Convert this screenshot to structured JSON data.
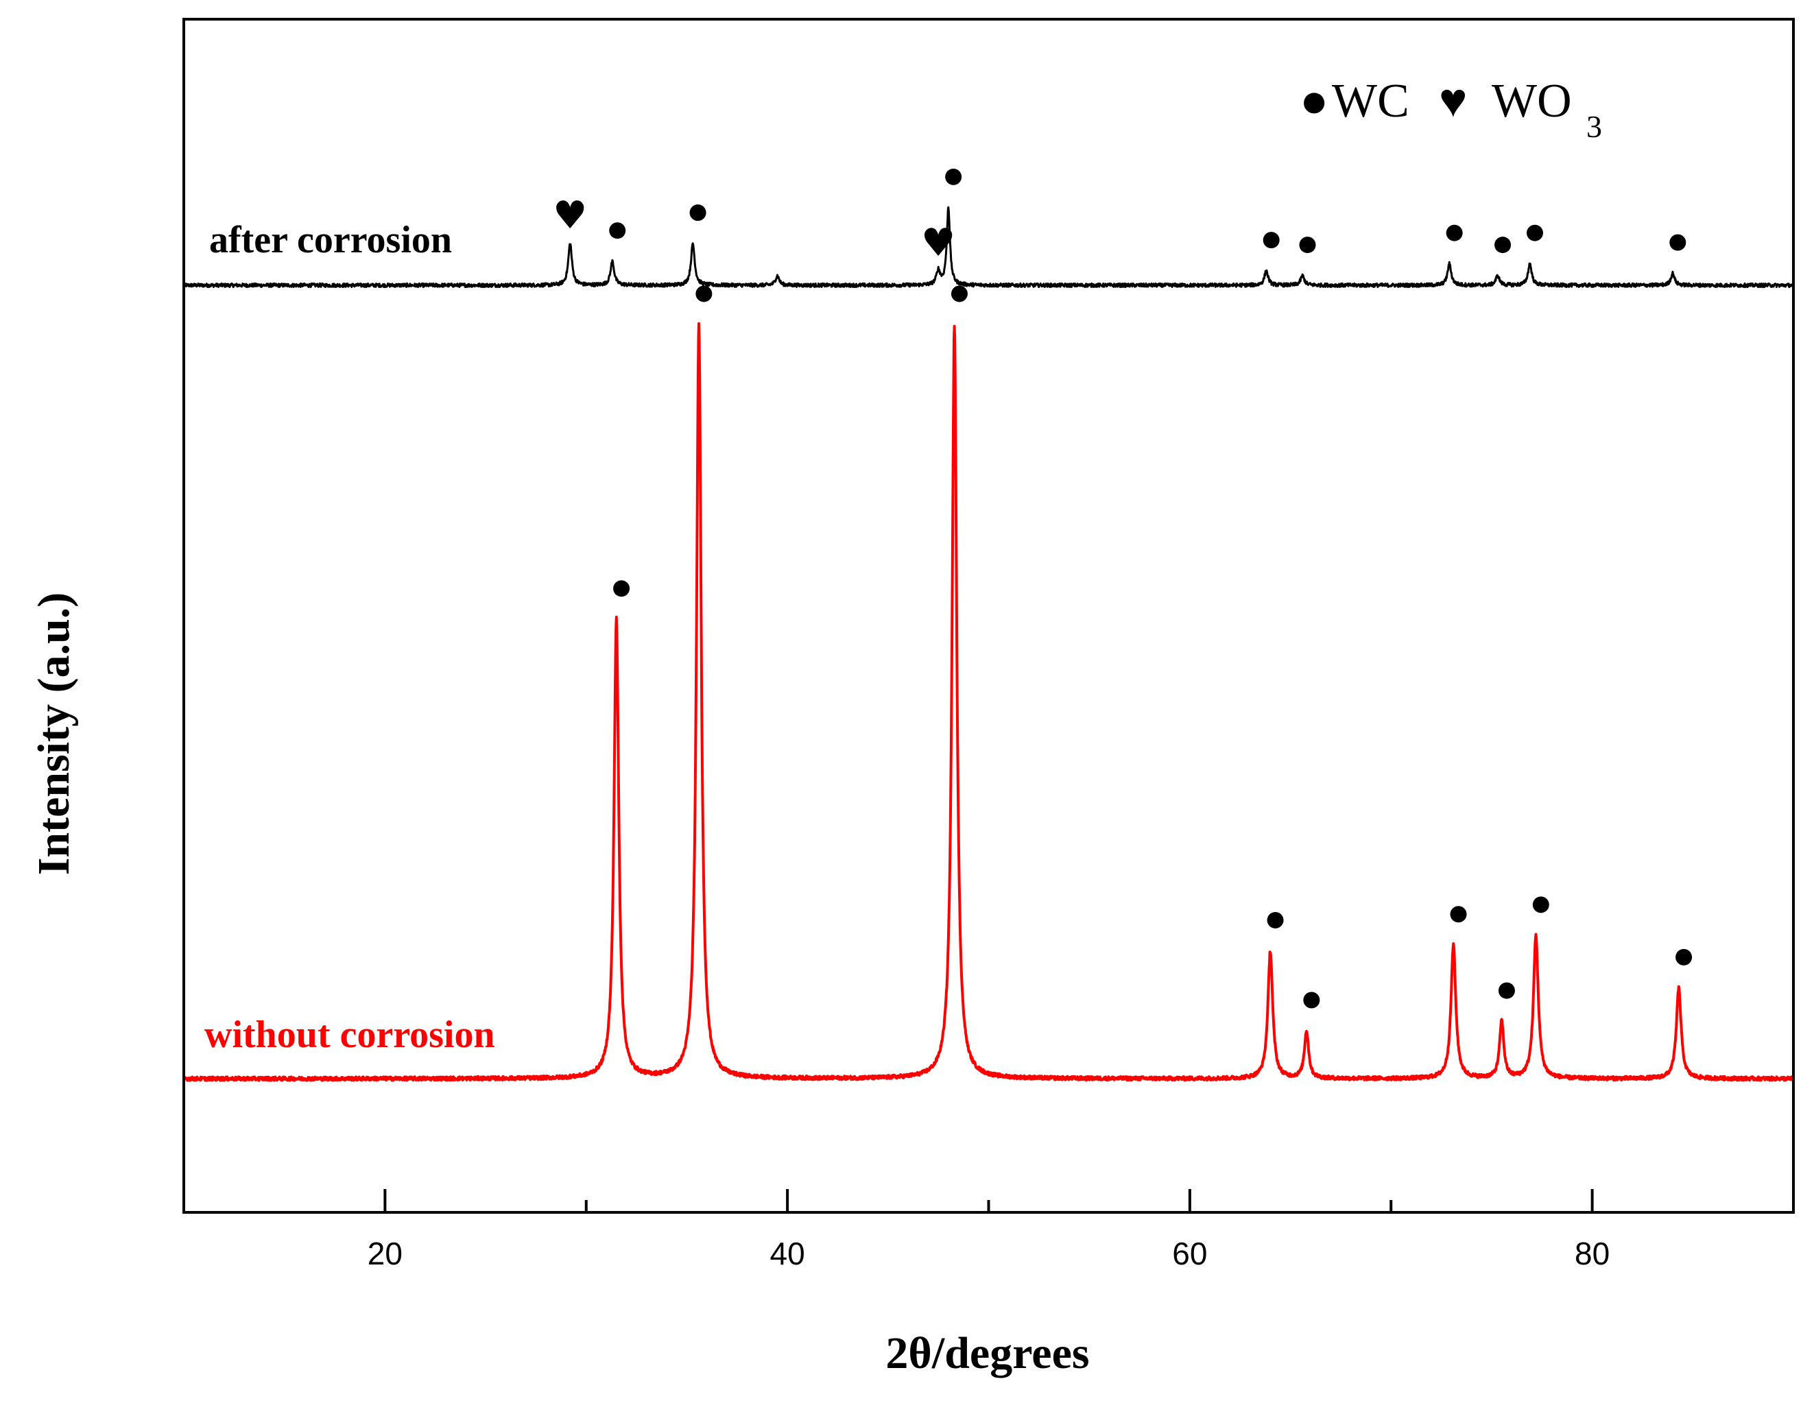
{
  "chart_data": {
    "type": "line",
    "title": "",
    "xlabel": "2θ/degrees",
    "ylabel": "Intensity (a.u.)",
    "xlim": [
      10,
      90
    ],
    "ylim": [
      0,
      1
    ],
    "xticks": [
      20,
      40,
      60,
      80
    ],
    "xticks_minor": [
      30,
      50,
      70
    ],
    "yticks": [],
    "grid": false,
    "legend": {
      "placement": "top-right",
      "entries": [
        {
          "symbol": "●",
          "name": "WC"
        },
        {
          "symbol": "♥",
          "name": "WO",
          "subscript": "3"
        }
      ]
    },
    "series": [
      {
        "name": "after corrosion",
        "color": "#000000",
        "baseline": 0.777,
        "noise": 0.0015,
        "peaks": [
          {
            "x": 29.2,
            "height": 0.035,
            "width": 0.14,
            "marker": "heart"
          },
          {
            "x": 31.3,
            "height": 0.02,
            "width": 0.14,
            "marker": "dot"
          },
          {
            "x": 35.3,
            "height": 0.035,
            "width": 0.14,
            "marker": "dot"
          },
          {
            "x": 39.5,
            "height": 0.008,
            "width": 0.14,
            "marker": "none"
          },
          {
            "x": 47.5,
            "height": 0.012,
            "width": 0.14,
            "marker": "heart"
          },
          {
            "x": 48.0,
            "height": 0.065,
            "width": 0.12,
            "marker": "dot"
          },
          {
            "x": 63.8,
            "height": 0.012,
            "width": 0.14,
            "marker": "dot"
          },
          {
            "x": 65.6,
            "height": 0.008,
            "width": 0.14,
            "marker": "dot"
          },
          {
            "x": 72.9,
            "height": 0.018,
            "width": 0.14,
            "marker": "dot"
          },
          {
            "x": 75.3,
            "height": 0.008,
            "width": 0.14,
            "marker": "dot"
          },
          {
            "x": 76.9,
            "height": 0.018,
            "width": 0.14,
            "marker": "dot"
          },
          {
            "x": 84.0,
            "height": 0.01,
            "width": 0.14,
            "marker": "dot"
          }
        ]
      },
      {
        "name": "without corrosion",
        "color": "#ff0000",
        "baseline": 0.112,
        "noise": 0.0015,
        "peaks": [
          {
            "x": 31.5,
            "height": 0.385,
            "width": 0.18,
            "marker": "dot"
          },
          {
            "x": 35.6,
            "height": 0.632,
            "width": 0.18,
            "marker": "dot"
          },
          {
            "x": 48.3,
            "height": 0.632,
            "width": 0.18,
            "marker": "dot"
          },
          {
            "x": 64.0,
            "height": 0.107,
            "width": 0.18,
            "marker": "dot"
          },
          {
            "x": 65.8,
            "height": 0.04,
            "width": 0.16,
            "marker": "dot"
          },
          {
            "x": 73.1,
            "height": 0.112,
            "width": 0.18,
            "marker": "dot"
          },
          {
            "x": 75.5,
            "height": 0.048,
            "width": 0.16,
            "marker": "dot"
          },
          {
            "x": 77.2,
            "height": 0.12,
            "width": 0.18,
            "marker": "dot"
          },
          {
            "x": 84.3,
            "height": 0.076,
            "width": 0.18,
            "marker": "dot"
          }
        ]
      }
    ]
  }
}
